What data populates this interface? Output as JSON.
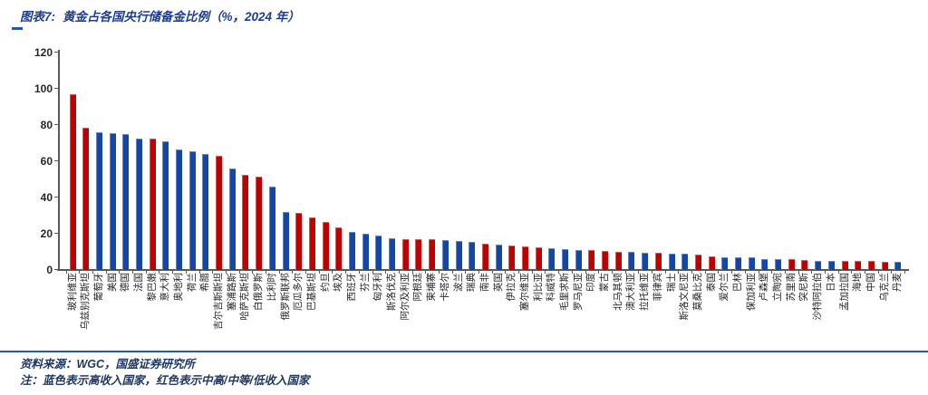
{
  "figure": {
    "label": "图表7:",
    "title": "黄金占各国央行储备金比例（%，2024 年）"
  },
  "footer": {
    "source": "资料来源：WGC，国盛证券研究所",
    "note": "注：蓝色表示高收入国家，红色表示中高/中等/低收入国家"
  },
  "colors": {
    "high_income_blue": "#1346A5",
    "mid_low_income_red": "#C00000",
    "accent_blue": "#2458B3",
    "text_navy": "#1F3864",
    "axis_gray": "#595959"
  },
  "chart_data": {
    "type": "bar",
    "title": "黄金占各国央行储备金比例（%，2024 年）",
    "xlabel": "",
    "ylabel": "",
    "ylim": [
      0,
      120
    ],
    "yticks": [
      0,
      20,
      40,
      60,
      80,
      100,
      120
    ],
    "grid": false,
    "legend_position": "none",
    "color_encoding": "blue = 高收入国家, red = 中高/中等/低收入国家",
    "categories": [
      "玻利维亚",
      "乌兹别克斯坦",
      "葡萄牙",
      "美国",
      "德国",
      "法国",
      "黎巴嫩",
      "意大利",
      "奥地利",
      "荷兰",
      "希腊",
      "吉尔吉斯斯坦",
      "塞浦路斯",
      "哈萨克斯坦",
      "白俄罗斯",
      "比利时",
      "俄罗斯联邦",
      "厄瓜多尔",
      "巴基斯坦",
      "约旦",
      "埃及",
      "西班牙",
      "芬兰",
      "匈牙利",
      "斯洛伐克",
      "阿尔及利亚",
      "阿根廷",
      "柬埔寨",
      "卡塔尔",
      "波兰",
      "瑞典",
      "南非",
      "英国",
      "伊拉克",
      "塞尔维亚",
      "利比亚",
      "科威特",
      "毛里求斯",
      "罗马尼亚",
      "印度",
      "蒙古",
      "北马其顿",
      "澳大利亚",
      "拉托维亚",
      "菲律宾",
      "瑞士",
      "斯洛文尼亚",
      "莫桑比克",
      "泰国",
      "爱尔兰",
      "巴林",
      "保加利亚",
      "卢森堡",
      "立陶宛",
      "苏里南",
      "突尼斯",
      "沙特阿拉伯",
      "日本",
      "孟加拉国",
      "海地",
      "中国",
      "乌克兰",
      "丹麦"
    ],
    "values": [
      97,
      78.5,
      76,
      75.5,
      75,
      72.5,
      72.5,
      71,
      66.5,
      65.5,
      64,
      63,
      56,
      52.5,
      51.5,
      46,
      32,
      31.5,
      29,
      26.5,
      23.5,
      21,
      20,
      19,
      17.5,
      17,
      17,
      17,
      16.5,
      16,
      15.5,
      14.5,
      14,
      13.5,
      13,
      12.5,
      12,
      11.5,
      11,
      11,
      10.5,
      10,
      10,
      9.5,
      9.5,
      9,
      9,
      8.5,
      7.5,
      7,
      7,
      7,
      6,
      6,
      6,
      5.5,
      5,
      5,
      5,
      5,
      5,
      4.5,
      4.5
    ],
    "income_group": [
      "mid_low",
      "mid_low",
      "high",
      "high",
      "high",
      "high",
      "mid_low",
      "high",
      "high",
      "high",
      "high",
      "mid_low",
      "high",
      "mid_low",
      "mid_low",
      "high",
      "high",
      "mid_low",
      "mid_low",
      "mid_low",
      "mid_low",
      "high",
      "high",
      "high",
      "high",
      "mid_low",
      "mid_low",
      "mid_low",
      "high",
      "high",
      "high",
      "mid_low",
      "high",
      "mid_low",
      "mid_low",
      "mid_low",
      "high",
      "high",
      "high",
      "mid_low",
      "mid_low",
      "mid_low",
      "high",
      "high",
      "mid_low",
      "high",
      "high",
      "mid_low",
      "mid_low",
      "high",
      "high",
      "high",
      "high",
      "high",
      "mid_low",
      "mid_low",
      "high",
      "high",
      "mid_low",
      "mid_low",
      "mid_low",
      "mid_low",
      "high"
    ]
  }
}
